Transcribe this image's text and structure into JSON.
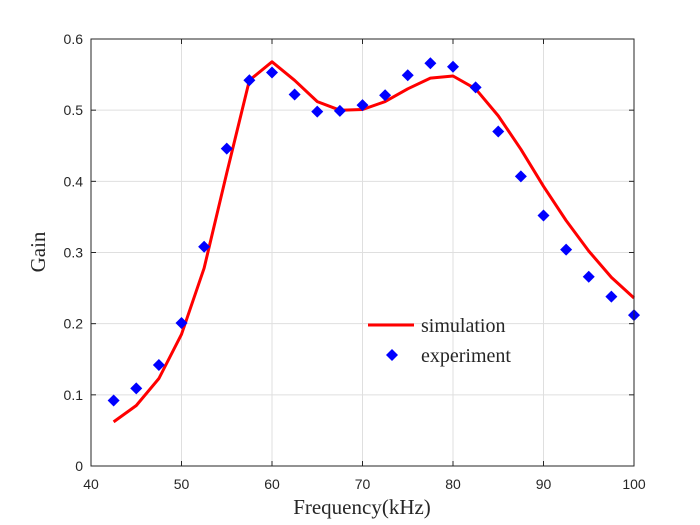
{
  "chart_data": {
    "type": "line",
    "title": "",
    "xlabel": "Frequency(kHz)",
    "ylabel": "Gain",
    "xlim": [
      40,
      100
    ],
    "ylim": [
      0,
      0.6
    ],
    "xticks": [
      "40",
      "50",
      "60",
      "70",
      "80",
      "90",
      "100"
    ],
    "yticks": [
      "0",
      "0.1",
      "0.2",
      "0.3",
      "0.4",
      "0.5",
      "0.6"
    ],
    "grid": true,
    "legend_position": "center-right",
    "series": [
      {
        "name": "simulation",
        "style": "line",
        "color": "#ff0000",
        "x": [
          42.5,
          45,
          47.5,
          50,
          52.5,
          55,
          57.5,
          60,
          62.5,
          65,
          67.5,
          70,
          72.5,
          75,
          77.5,
          80,
          82.5,
          85,
          87.5,
          90,
          92.5,
          95,
          97.5,
          100
        ],
        "y": [
          0.062,
          0.085,
          0.123,
          0.185,
          0.278,
          0.412,
          0.542,
          0.568,
          0.542,
          0.512,
          0.5,
          0.501,
          0.512,
          0.53,
          0.545,
          0.548,
          0.53,
          0.492,
          0.445,
          0.393,
          0.345,
          0.302,
          0.265,
          0.236
        ]
      },
      {
        "name": "experiment",
        "style": "marker",
        "color": "#0000ff",
        "x": [
          42.5,
          45,
          47.5,
          50,
          52.5,
          55,
          57.5,
          60,
          62.5,
          65,
          67.5,
          70,
          72.5,
          75,
          77.5,
          80,
          82.5,
          85,
          87.5,
          90,
          92.5,
          95,
          97.5,
          100
        ],
        "y": [
          0.092,
          0.109,
          0.142,
          0.201,
          0.308,
          0.446,
          0.542,
          0.553,
          0.522,
          0.498,
          0.499,
          0.507,
          0.521,
          0.549,
          0.566,
          0.561,
          0.532,
          0.47,
          0.407,
          0.352,
          0.304,
          0.266,
          0.238,
          0.212
        ]
      }
    ]
  }
}
